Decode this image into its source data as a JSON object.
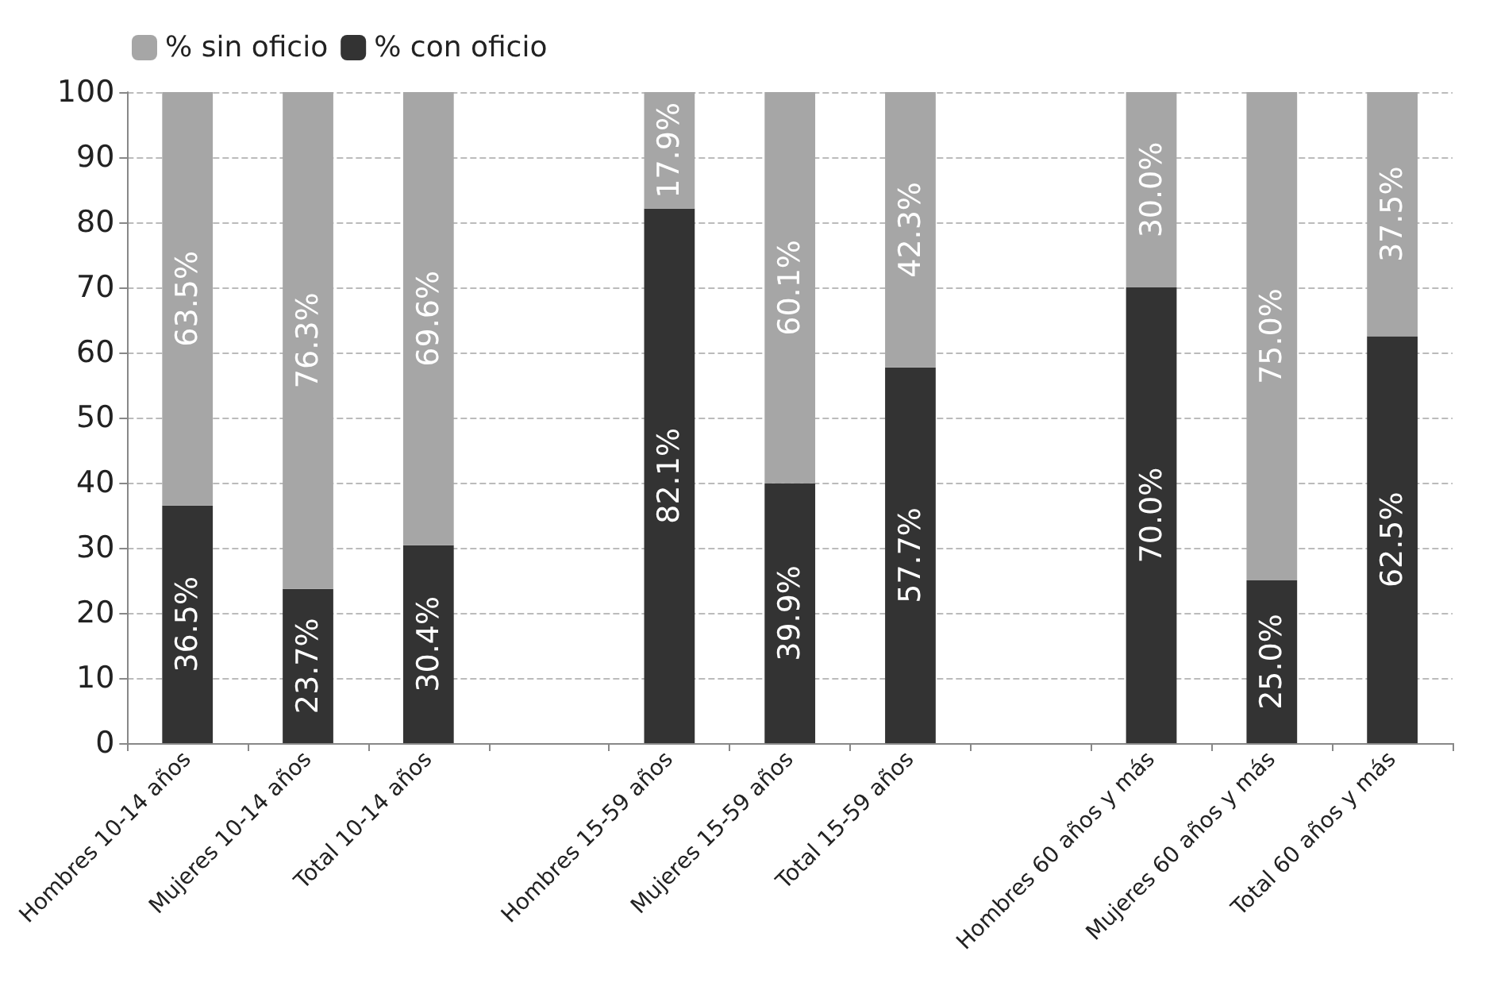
{
  "chart_data": {
    "type": "bar",
    "stacked": true,
    "categories": [
      "Hombres 10-14 años",
      "Mujeres 10-14 años",
      "Total 10-14 años",
      null,
      "Hombres 15-59 años",
      "Mujeres 15-59 años",
      "Total 15-59 años",
      null,
      "Hombres 60 años y más",
      "Mujeres 60 años y más",
      "Total 60 años y más"
    ],
    "series": [
      {
        "name": "% con oficio",
        "color": "#333333",
        "values": [
          36.5,
          23.7,
          30.4,
          null,
          82.1,
          39.9,
          57.7,
          null,
          70.0,
          25.0,
          62.5
        ],
        "value_labels": [
          "36.5%",
          "23.7%",
          "30.4%",
          null,
          "82.1%",
          "39.9%",
          "57.7%",
          null,
          "70.0%",
          "25.0%",
          "62.5%"
        ]
      },
      {
        "name": "% sin oficio",
        "color": "#a6a6a6",
        "values": [
          63.5,
          76.3,
          69.6,
          null,
          17.9,
          60.1,
          42.3,
          null,
          30.0,
          75.0,
          37.5
        ],
        "value_labels": [
          "63.5%",
          "76.3%",
          "69.6%",
          null,
          "17.9%",
          "60.1%",
          "42.3%",
          null,
          "30.0%",
          "75.0%",
          "37.5%"
        ]
      }
    ],
    "ylim": [
      0,
      100
    ],
    "yticks": [
      0,
      10,
      20,
      30,
      40,
      50,
      60,
      70,
      80,
      90,
      100
    ],
    "grid": "y",
    "legend": "top left"
  }
}
